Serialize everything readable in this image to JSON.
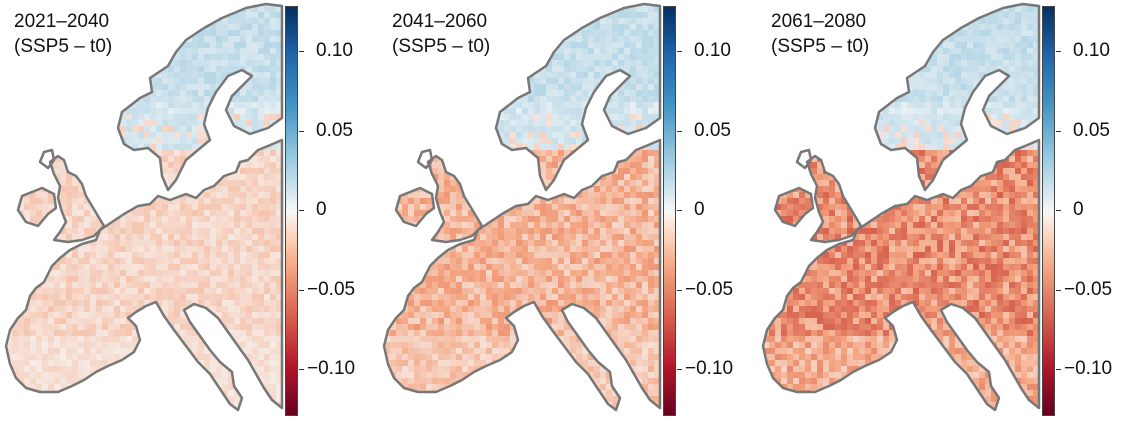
{
  "panels": [
    {
      "title_line1": "2021–2040",
      "title_line2": "(SSP5 – t0)",
      "intensity": 0.28
    },
    {
      "title_line1": "2041–2060",
      "title_line2": "(SSP5 – t0)",
      "intensity": 0.55
    },
    {
      "title_line1": "2061–2080",
      "title_line2": "(SSP5 – t0)",
      "intensity": 0.9
    }
  ],
  "colorbar": {
    "ticks": [
      "0.10",
      "0.05",
      "0",
      "−0.05",
      "−0.10"
    ],
    "tick_values": [
      0.1,
      0.05,
      0,
      -0.05,
      -0.1
    ],
    "range": [
      -0.125,
      0.125
    ],
    "palette": [
      "#053061",
      "#2166ac",
      "#4393c3",
      "#92c5de",
      "#d1e5f0",
      "#f7f7f7",
      "#fddbc7",
      "#f4a582",
      "#d6604d",
      "#b2182b",
      "#67001f"
    ]
  },
  "colors": {
    "coastline": "#777777",
    "positive": "#cfe3f0",
    "negative": "#d6604d"
  }
}
